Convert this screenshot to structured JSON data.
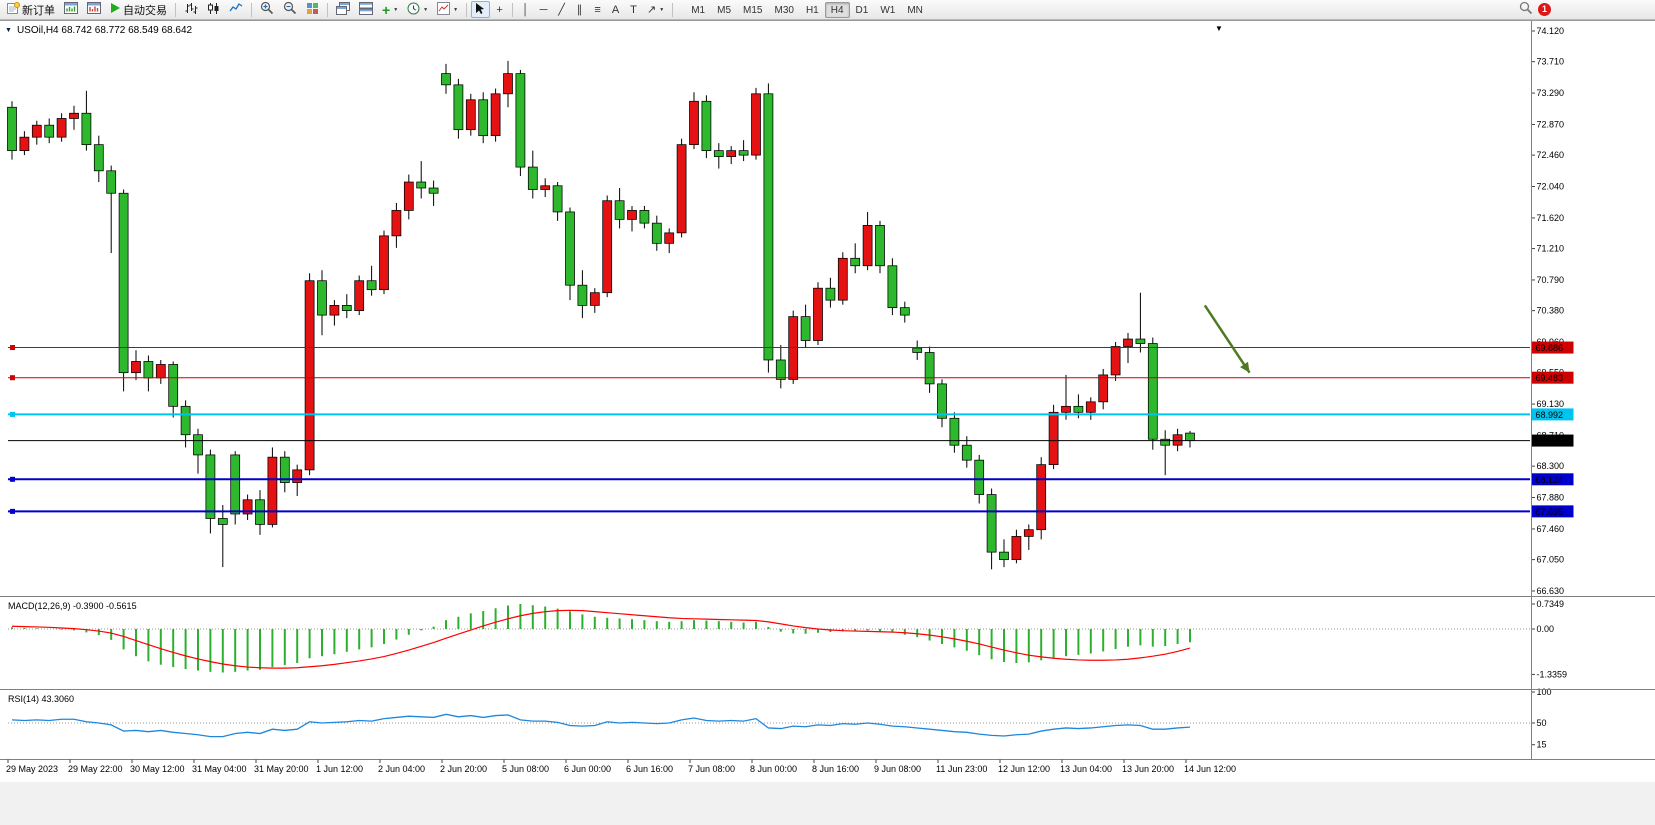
{
  "toolbar": {
    "new_order": "新订单",
    "auto_trading": "自动交易",
    "timeframes": [
      "M1",
      "M5",
      "M15",
      "M30",
      "H1",
      "H4",
      "D1",
      "W1",
      "MN"
    ],
    "active_timeframe": "H4",
    "notification": "1"
  },
  "icons": {
    "vline": "│",
    "hline": "─",
    "trend": "╱",
    "channel": "∥",
    "fibonacci": "≡",
    "text": "A",
    "label": "T",
    "shapes": "↗",
    "crosshair": "+",
    "add": "+",
    "caret": "▼",
    "window_menu": "▼",
    "triangle_down": "▼"
  },
  "chart": {
    "title": "USOil,H4  68.742 68.772 68.549 68.642",
    "symbol": "USOil",
    "period": "H4",
    "open": "68.742",
    "high": "68.772",
    "low": "68.549",
    "close": "68.642"
  },
  "chart_data": {
    "type": "candlestick",
    "symbol": "USOil",
    "timeframe": "H4",
    "colors": {
      "up": "#E41212",
      "down": "#2DB82D",
      "wick": "#000000",
      "macd_hist": "#2FAF2F",
      "macd_signal": "#FF0000",
      "rsi_line": "#1E87DC",
      "arrow": "#4F7A24"
    },
    "price_axis_labels": [
      "74.120",
      "73.710",
      "73.290",
      "72.870",
      "72.460",
      "72.040",
      "71.620",
      "71.210",
      "70.790",
      "70.380",
      "69.960",
      "69.550",
      "69.130",
      "68.710",
      "68.300",
      "67.880",
      "67.460",
      "67.050",
      "66.630"
    ],
    "time_axis_labels": [
      "29 May 2023",
      "29 May 22:00",
      "30 May 12:00",
      "31 May 04:00",
      "31 May 20:00",
      "1 Jun 12:00",
      "2 Jun 04:00",
      "2 Jun 20:00",
      "5 Jun 08:00",
      "6 Jun 00:00",
      "6 Jun 16:00",
      "7 Jun 08:00",
      "8 Jun 00:00",
      "8 Jun 16:00",
      "9 Jun 08:00",
      "11 Jun 23:00",
      "12 Jun 12:00",
      "13 Jun 04:00",
      "13 Jun 20:00",
      "14 Jun 12:00"
    ],
    "candles": [
      [
        73.1,
        73.18,
        72.4,
        72.52
      ],
      [
        72.52,
        72.78,
        72.46,
        72.7
      ],
      [
        72.7,
        72.92,
        72.6,
        72.86
      ],
      [
        72.86,
        72.95,
        72.62,
        72.7
      ],
      [
        72.7,
        73.02,
        72.64,
        72.95
      ],
      [
        72.95,
        73.12,
        72.8,
        73.02
      ],
      [
        73.02,
        73.32,
        72.52,
        72.6
      ],
      [
        72.6,
        72.72,
        72.1,
        72.25
      ],
      [
        72.25,
        72.32,
        71.15,
        71.95
      ],
      [
        71.95,
        72.0,
        69.3,
        69.55
      ],
      [
        69.55,
        69.85,
        69.45,
        69.7
      ],
      [
        69.7,
        69.78,
        69.3,
        69.48
      ],
      [
        69.48,
        69.72,
        69.4,
        69.66
      ],
      [
        69.66,
        69.7,
        68.95,
        69.1
      ],
      [
        69.1,
        69.18,
        68.55,
        68.72
      ],
      [
        68.72,
        68.8,
        68.2,
        68.45
      ],
      [
        68.45,
        68.52,
        67.4,
        67.6
      ],
      [
        67.6,
        67.78,
        66.95,
        67.52
      ],
      [
        68.45,
        68.5,
        67.52,
        67.66
      ],
      [
        67.66,
        67.92,
        67.58,
        67.85
      ],
      [
        67.85,
        67.98,
        67.38,
        67.52
      ],
      [
        67.52,
        68.55,
        67.48,
        68.42
      ],
      [
        68.42,
        68.5,
        67.95,
        68.08
      ],
      [
        68.08,
        68.32,
        67.9,
        68.25
      ],
      [
        68.25,
        70.88,
        68.18,
        70.78
      ],
      [
        70.78,
        70.92,
        70.05,
        70.32
      ],
      [
        70.32,
        70.52,
        70.18,
        70.45
      ],
      [
        70.45,
        70.6,
        70.28,
        70.38
      ],
      [
        70.38,
        70.85,
        70.32,
        70.78
      ],
      [
        70.78,
        70.98,
        70.58,
        70.66
      ],
      [
        70.66,
        71.45,
        70.6,
        71.38
      ],
      [
        71.38,
        71.82,
        71.22,
        71.72
      ],
      [
        71.72,
        72.2,
        71.6,
        72.1
      ],
      [
        72.1,
        72.38,
        71.88,
        72.02
      ],
      [
        72.02,
        72.12,
        71.78,
        71.95
      ],
      [
        73.55,
        73.68,
        73.28,
        73.4
      ],
      [
        73.4,
        73.48,
        72.68,
        72.8
      ],
      [
        72.8,
        73.28,
        72.72,
        73.2
      ],
      [
        73.2,
        73.3,
        72.62,
        72.72
      ],
      [
        72.72,
        73.35,
        72.64,
        73.28
      ],
      [
        73.28,
        73.72,
        73.1,
        73.55
      ],
      [
        73.55,
        73.6,
        72.18,
        72.3
      ],
      [
        72.3,
        72.52,
        71.88,
        72.0
      ],
      [
        72.0,
        72.15,
        71.9,
        72.05
      ],
      [
        72.05,
        72.1,
        71.58,
        71.7
      ],
      [
        71.7,
        71.76,
        70.52,
        70.72
      ],
      [
        70.72,
        70.92,
        70.28,
        70.45
      ],
      [
        70.45,
        70.68,
        70.35,
        70.62
      ],
      [
        70.62,
        71.92,
        70.56,
        71.85
      ],
      [
        71.85,
        72.02,
        71.48,
        71.6
      ],
      [
        71.6,
        71.78,
        71.44,
        71.72
      ],
      [
        71.72,
        71.78,
        71.48,
        71.55
      ],
      [
        71.55,
        71.65,
        71.18,
        71.28
      ],
      [
        71.28,
        71.48,
        71.15,
        71.42
      ],
      [
        71.42,
        72.68,
        71.36,
        72.6
      ],
      [
        72.6,
        73.3,
        72.54,
        73.18
      ],
      [
        73.18,
        73.26,
        72.42,
        72.52
      ],
      [
        72.52,
        72.62,
        72.28,
        72.44
      ],
      [
        72.44,
        72.58,
        72.34,
        72.52
      ],
      [
        72.52,
        72.66,
        72.38,
        72.46
      ],
      [
        72.46,
        73.36,
        72.4,
        73.28
      ],
      [
        73.28,
        73.42,
        69.55,
        69.72
      ],
      [
        69.72,
        69.92,
        69.34,
        69.46
      ],
      [
        69.46,
        70.38,
        69.4,
        70.3
      ],
      [
        70.3,
        70.46,
        69.88,
        69.98
      ],
      [
        69.98,
        70.76,
        69.92,
        70.68
      ],
      [
        70.68,
        70.82,
        70.42,
        70.52
      ],
      [
        70.52,
        71.16,
        70.46,
        71.08
      ],
      [
        71.08,
        71.28,
        70.88,
        70.98
      ],
      [
        70.98,
        71.7,
        70.92,
        71.52
      ],
      [
        71.52,
        71.58,
        70.88,
        70.98
      ],
      [
        70.98,
        71.08,
        70.32,
        70.42
      ],
      [
        70.42,
        70.5,
        70.22,
        70.32
      ],
      [
        69.88,
        69.98,
        69.72,
        69.82
      ],
      [
        69.82,
        69.9,
        69.28,
        69.4
      ],
      [
        69.4,
        69.46,
        68.82,
        68.94
      ],
      [
        68.94,
        69.02,
        68.48,
        68.58
      ],
      [
        68.58,
        68.7,
        68.28,
        68.38
      ],
      [
        68.38,
        68.45,
        67.8,
        67.92
      ],
      [
        67.92,
        68.0,
        66.92,
        67.15
      ],
      [
        67.15,
        67.32,
        66.95,
        67.05
      ],
      [
        67.05,
        67.45,
        67.0,
        67.36
      ],
      [
        67.36,
        67.52,
        67.18,
        67.45
      ],
      [
        67.45,
        68.42,
        67.32,
        68.32
      ],
      [
        68.32,
        69.12,
        68.26,
        69.02
      ],
      [
        69.02,
        69.52,
        68.92,
        69.1
      ],
      [
        69.1,
        69.26,
        68.94,
        69.02
      ],
      [
        69.02,
        69.22,
        68.92,
        69.16
      ],
      [
        69.16,
        69.6,
        69.06,
        69.52
      ],
      [
        69.52,
        69.96,
        69.44,
        69.9
      ],
      [
        69.9,
        70.08,
        69.68,
        70.0
      ],
      [
        70.0,
        70.62,
        69.82,
        69.94
      ],
      [
        69.94,
        70.02,
        68.52,
        68.66
      ],
      [
        68.66,
        68.78,
        68.18,
        68.58
      ],
      [
        68.58,
        68.8,
        68.5,
        68.72
      ],
      [
        68.742,
        68.772,
        68.549,
        68.642
      ]
    ],
    "hlines": [
      {
        "price": 69.886,
        "label": "69.886",
        "color": "#CE0000",
        "width": 1
      },
      {
        "price": 69.483,
        "label": "69.483",
        "color": "#CE0000",
        "width": 1
      },
      {
        "price": 68.992,
        "label": "68.992",
        "color": "#00C4F0",
        "width": 2
      },
      {
        "price": 68.642,
        "label": "68.642",
        "color": "#000000",
        "width": 1,
        "price_line": true
      },
      {
        "price": 68.124,
        "label": "68.124",
        "color": "#0000CC",
        "width": 2
      },
      {
        "price": 67.695,
        "label": "67.695",
        "color": "#0000CC",
        "width": 2
      }
    ],
    "arrow": {
      "from_bar": 96.2,
      "from_price": 70.45,
      "to_bar": 99.8,
      "to_price": 69.55
    },
    "macd": {
      "display": "MACD(12,26,9) -0.3900 -0.5615",
      "main_value": -0.39,
      "signal_value": -0.5615,
      "axis_labels": [
        "0.7349",
        "0.00",
        "-1.3359"
      ],
      "histogram": [
        0.05,
        0.03,
        0.02,
        0.0,
        -0.02,
        -0.04,
        -0.1,
        -0.18,
        -0.32,
        -0.6,
        -0.8,
        -0.95,
        -1.05,
        -1.12,
        -1.18,
        -1.22,
        -1.26,
        -1.28,
        -1.26,
        -1.22,
        -1.2,
        -1.12,
        -1.06,
        -1.0,
        -0.86,
        -0.8,
        -0.74,
        -0.67,
        -0.6,
        -0.54,
        -0.44,
        -0.31,
        -0.17,
        -0.04,
        0.07,
        0.26,
        0.36,
        0.46,
        0.53,
        0.61,
        0.69,
        0.7349,
        0.7,
        0.66,
        0.6,
        0.52,
        0.43,
        0.36,
        0.33,
        0.31,
        0.29,
        0.26,
        0.23,
        0.21,
        0.23,
        0.26,
        0.25,
        0.23,
        0.21,
        0.19,
        0.21,
        0.06,
        -0.08,
        -0.13,
        -0.14,
        -0.11,
        -0.09,
        -0.07,
        -0.05,
        -0.04,
        -0.07,
        -0.11,
        -0.17,
        -0.24,
        -0.34,
        -0.44,
        -0.54,
        -0.64,
        -0.77,
        -0.89,
        -0.97,
        -1.0,
        -0.98,
        -0.92,
        -0.86,
        -0.8,
        -0.76,
        -0.72,
        -0.66,
        -0.59,
        -0.52,
        -0.48,
        -0.52,
        -0.5,
        -0.44,
        -0.39
      ],
      "signal": [
        0.08,
        0.07,
        0.06,
        0.05,
        0.03,
        0.01,
        -0.02,
        -0.06,
        -0.12,
        -0.22,
        -0.34,
        -0.46,
        -0.58,
        -0.69,
        -0.79,
        -0.88,
        -0.96,
        -1.03,
        -1.08,
        -1.12,
        -1.14,
        -1.15,
        -1.15,
        -1.14,
        -1.11,
        -1.08,
        -1.04,
        -0.99,
        -0.94,
        -0.88,
        -0.81,
        -0.72,
        -0.62,
        -0.51,
        -0.4,
        -0.27,
        -0.15,
        -0.03,
        0.09,
        0.2,
        0.3,
        0.39,
        0.46,
        0.51,
        0.54,
        0.55,
        0.54,
        0.51,
        0.48,
        0.45,
        0.42,
        0.39,
        0.36,
        0.33,
        0.31,
        0.3,
        0.29,
        0.28,
        0.27,
        0.26,
        0.25,
        0.21,
        0.15,
        0.09,
        0.04,
        0.0,
        -0.03,
        -0.05,
        -0.06,
        -0.07,
        -0.08,
        -0.09,
        -0.11,
        -0.14,
        -0.18,
        -0.23,
        -0.29,
        -0.36,
        -0.44,
        -0.53,
        -0.62,
        -0.7,
        -0.77,
        -0.82,
        -0.86,
        -0.89,
        -0.91,
        -0.92,
        -0.92,
        -0.91,
        -0.89,
        -0.85,
        -0.8,
        -0.74,
        -0.66,
        -0.5615
      ]
    },
    "rsi": {
      "display": "RSI(14) 43.3060",
      "value": 43.306,
      "axis_labels": [
        "100",
        "50",
        "15"
      ],
      "level": 50,
      "values": [
        55,
        54,
        55,
        54,
        56,
        56,
        52,
        50,
        47,
        37,
        38,
        36,
        38,
        35,
        33,
        31,
        28,
        28,
        33,
        35,
        33,
        40,
        38,
        40,
        52,
        50,
        51,
        52,
        54,
        53,
        57,
        59,
        61,
        60,
        59,
        64,
        60,
        62,
        59,
        62,
        63,
        55,
        53,
        53,
        51,
        46,
        45,
        46,
        52,
        50,
        51,
        50,
        49,
        50,
        55,
        58,
        54,
        53,
        54,
        53,
        57,
        42,
        41,
        45,
        44,
        47,
        46,
        49,
        48,
        50,
        48,
        45,
        44,
        42,
        40,
        38,
        36,
        35,
        32,
        30,
        29,
        31,
        32,
        37,
        40,
        42,
        41,
        42,
        44,
        46,
        47,
        46,
        40,
        40,
        42,
        43.31
      ]
    }
  }
}
